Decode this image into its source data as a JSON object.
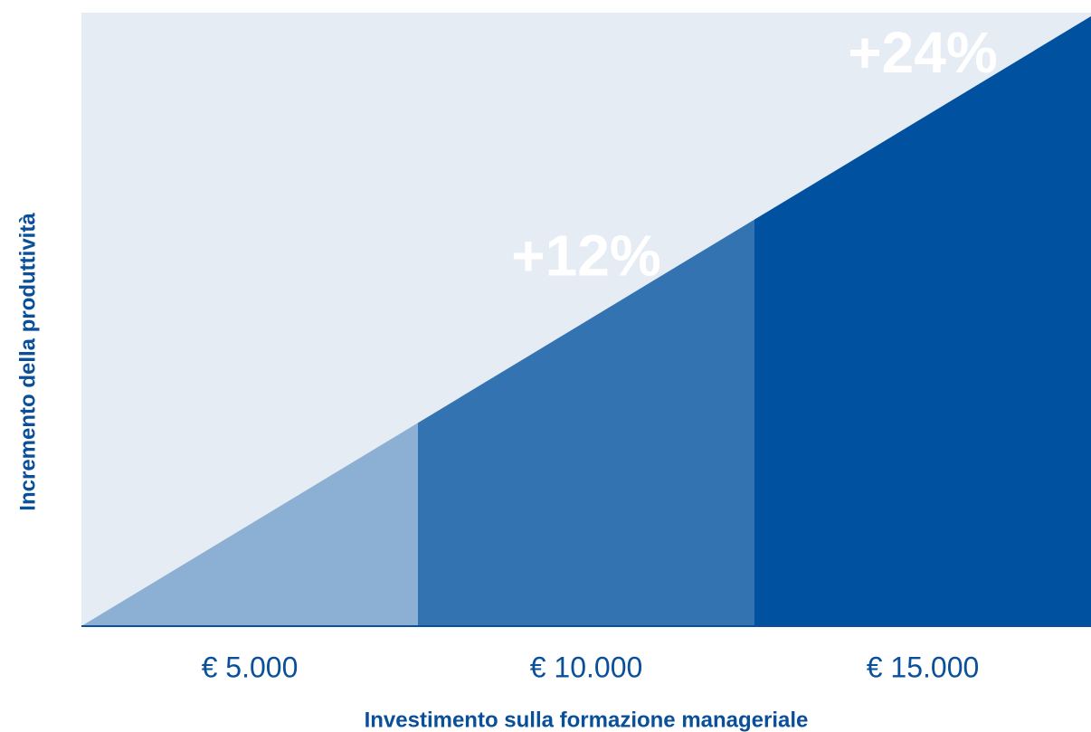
{
  "y_label": "Incremento della produttività",
  "x_label": "Investimento sulla formazione manageriale",
  "segments": [
    {
      "category": "€ 5.000",
      "color": "#8cafd4"
    },
    {
      "category": "€ 10.000",
      "label": "+12%",
      "color": "#3473b2"
    },
    {
      "category": "€ 15.000",
      "label": "+24%",
      "color": "#0051a0"
    }
  ]
}
